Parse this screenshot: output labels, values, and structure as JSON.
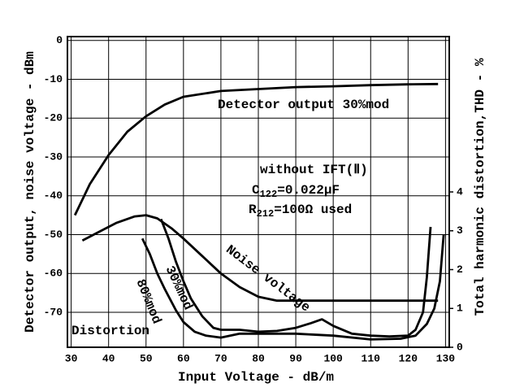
{
  "chart_data": {
    "type": "line",
    "x_label": "Input Voltage - dB/m",
    "y_label": "Detector output, noise voltage - dBm",
    "y2_label": "Total harmonic distortion,THD - %",
    "xlim": [
      29,
      131
    ],
    "xticks": [
      30,
      40,
      50,
      60,
      70,
      80,
      90,
      100,
      110,
      120,
      130
    ],
    "ylim": [
      -79,
      1
    ],
    "yticks": [
      0,
      -10,
      -20,
      -30,
      -40,
      -50,
      -60,
      -70
    ],
    "y2lim": [
      0,
      8
    ],
    "y2ticks": [
      0,
      1,
      2,
      3,
      4
    ],
    "grid": true,
    "series": [
      {
        "name": "Detector output 30%mod",
        "color": "#000000",
        "x": [
          31,
          35,
          40,
          45,
          50,
          55,
          60,
          70,
          80,
          90,
          100,
          110,
          120,
          128
        ],
        "values": [
          -45,
          -37,
          -29.5,
          -23.5,
          -19.5,
          -16.5,
          -14.5,
          -13,
          -12.5,
          -12,
          -11.8,
          -11.5,
          -11.3,
          -11.2
        ]
      },
      {
        "name": "Noise voltage",
        "color": "#000000",
        "x": [
          33,
          37,
          42,
          47,
          50,
          53,
          57,
          60,
          65,
          70,
          75,
          80,
          85,
          90,
          100,
          110,
          120,
          128
        ],
        "values": [
          -51.5,
          -49.5,
          -47,
          -45.3,
          -45,
          -45.8,
          -48.5,
          -51,
          -55.5,
          -60,
          -63.5,
          -66,
          -67,
          -67,
          -67,
          -67,
          -67,
          -67
        ]
      },
      {
        "name": "30%mod",
        "color": "#000000",
        "axis": "y2",
        "x": [
          54,
          56,
          58,
          60,
          62,
          65,
          68,
          70,
          75,
          80,
          85,
          90,
          94,
          97,
          100,
          105,
          110,
          115,
          120,
          122,
          124,
          125,
          126
        ],
        "values": [
          3.3,
          2.8,
          2.2,
          1.7,
          1.25,
          0.8,
          0.5,
          0.45,
          0.45,
          0.4,
          0.42,
          0.5,
          0.62,
          0.72,
          0.55,
          0.35,
          0.3,
          0.28,
          0.3,
          0.45,
          0.9,
          1.8,
          3.1
        ]
      },
      {
        "name": "80%mod",
        "color": "#000000",
        "axis": "y2",
        "x": [
          49,
          51,
          53,
          55,
          58,
          60,
          63,
          66,
          70,
          75,
          80,
          90,
          100,
          110,
          118,
          122,
          125,
          127,
          128.5,
          129.5
        ],
        "values": [
          2.8,
          2.4,
          1.9,
          1.5,
          0.95,
          0.65,
          0.4,
          0.3,
          0.25,
          0.35,
          0.35,
          0.35,
          0.3,
          0.2,
          0.22,
          0.3,
          0.6,
          1.0,
          1.7,
          2.9
        ]
      }
    ],
    "annotations": [
      "without IFT(Ⅱ)",
      "Distortion"
    ],
    "components": [
      {
        "symbol": "C",
        "subscript": "122",
        "value": "=0.022μF"
      },
      {
        "symbol": "R",
        "subscript": "212",
        "value": "=100Ω used"
      }
    ]
  }
}
